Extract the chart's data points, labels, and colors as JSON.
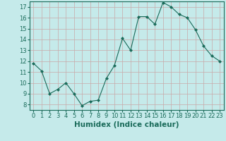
{
  "xlabel": "Humidex (Indice chaleur)",
  "x": [
    0,
    1,
    2,
    3,
    4,
    5,
    6,
    7,
    8,
    9,
    10,
    11,
    12,
    13,
    14,
    15,
    16,
    17,
    18,
    19,
    20,
    21,
    22,
    23
  ],
  "y": [
    11.8,
    11.1,
    9.0,
    9.4,
    10.0,
    9.0,
    7.9,
    8.3,
    8.4,
    10.4,
    11.6,
    14.1,
    13.0,
    16.1,
    16.1,
    15.4,
    17.4,
    17.0,
    16.3,
    16.0,
    14.9,
    13.4,
    12.5,
    12.0
  ],
  "line_color": "#1a6b5a",
  "marker": "D",
  "marker_size": 2.0,
  "bg_color": "#c5eaea",
  "grid_color": "#c8a8a8",
  "xlim": [
    -0.5,
    23.5
  ],
  "ylim": [
    7.5,
    17.5
  ],
  "yticks": [
    8,
    9,
    10,
    11,
    12,
    13,
    14,
    15,
    16,
    17
  ],
  "xticks": [
    0,
    1,
    2,
    3,
    4,
    5,
    6,
    7,
    8,
    9,
    10,
    11,
    12,
    13,
    14,
    15,
    16,
    17,
    18,
    19,
    20,
    21,
    22,
    23
  ],
  "tick_label_fontsize": 6.0,
  "xlabel_fontsize": 7.5
}
